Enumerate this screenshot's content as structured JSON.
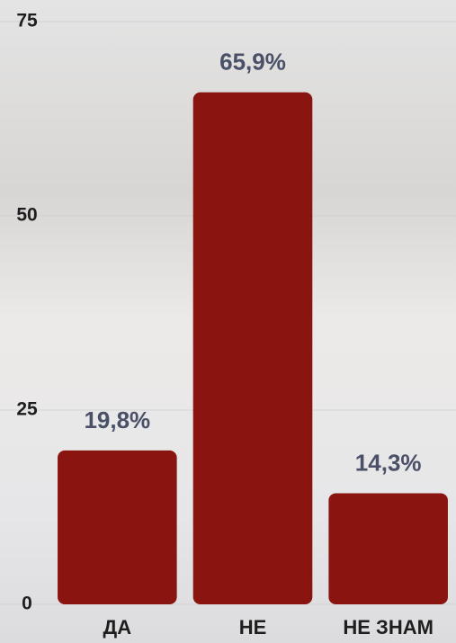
{
  "chart_data": {
    "type": "bar",
    "categories": [
      "ДА",
      "НЕ",
      "НЕ ЗНАМ"
    ],
    "values": [
      19.8,
      65.9,
      14.3
    ],
    "value_labels": [
      "19,8%",
      "65,9%",
      "14,3%"
    ],
    "color": "#8a1510",
    "ylim": [
      0,
      75
    ],
    "yticks": [
      0,
      25,
      50,
      75
    ],
    "grid": true
  }
}
